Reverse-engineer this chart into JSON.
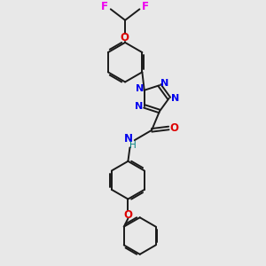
{
  "bg_color": "#e8e8e8",
  "bond_color": "#1a1a1a",
  "N_color": "#0000ee",
  "O_color": "#dd0000",
  "F_color": "#ee00ee",
  "H_color": "#008080",
  "line_width": 1.4,
  "figsize": [
    3.0,
    3.0
  ],
  "dpi": 100,
  "xlim": [
    0,
    10
  ],
  "ylim": [
    0,
    10
  ]
}
